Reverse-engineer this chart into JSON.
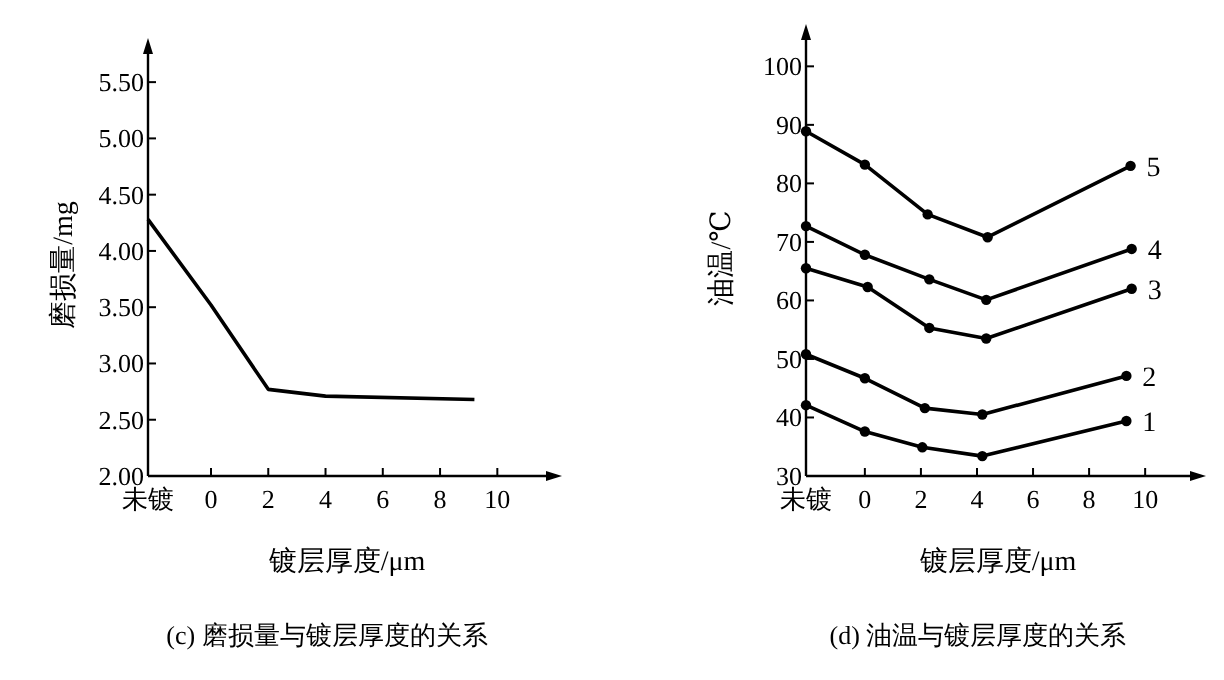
{
  "chart_data": [
    {
      "type": "line",
      "xlabel": "镀层厚度/μm",
      "ylabel": "磨损量/mg",
      "annotations": [
        "(c) 磨损量与镀层厚度的关系"
      ],
      "x": [
        -2.2,
        0,
        2,
        4,
        9.2
      ],
      "series": [
        {
          "color": "#000000",
          "values": [
            4.28,
            3.52,
            2.77,
            2.71,
            2.68
          ]
        }
      ],
      "xlim": [
        -2.2,
        11.7
      ],
      "ylim": [
        2,
        5.75
      ],
      "xticks": [
        {
          "value": -2.2,
          "label": "未镀"
        },
        0,
        2,
        4,
        6,
        8,
        10
      ],
      "yticks": [
        {
          "value": 2,
          "label": "2.00"
        },
        {
          "value": 2.5,
          "label": "2.50"
        },
        {
          "value": 3,
          "label": "3.00"
        },
        {
          "value": 3.5,
          "label": "3.50"
        },
        {
          "value": 4,
          "label": "4.00"
        },
        {
          "value": 4.5,
          "label": "4.50"
        },
        {
          "value": 5,
          "label": "5.00"
        },
        {
          "value": 5.5,
          "label": "5.50"
        }
      ],
      "grid": false,
      "marker": "none",
      "line_style": "solid"
    },
    {
      "type": "line",
      "xlabel": "镀层厚度/μm",
      "ylabel": "油温/℃",
      "annotations": [
        "(d) 油温与镀层厚度的关系"
      ],
      "series": [
        {
          "name": "1",
          "color": "#000000",
          "x": [
            -2.1,
            0,
            2.05,
            4.19,
            9.33
          ],
          "values": [
            42.1,
            37.6,
            34.9,
            33.4,
            39.4
          ]
        },
        {
          "name": "2",
          "color": "#000000",
          "x": [
            -2.1,
            0,
            2.14,
            4.19,
            9.33
          ],
          "values": [
            50.8,
            46.7,
            41.6,
            40.5,
            47.1
          ]
        },
        {
          "name": "3",
          "color": "#000000",
          "x": [
            -2.1,
            0.1,
            2.3,
            4.33,
            9.52
          ],
          "values": [
            65.5,
            62.3,
            55.3,
            53.5,
            62.0
          ]
        },
        {
          "name": "4",
          "color": "#000000",
          "x": [
            -2.1,
            0,
            2.3,
            4.33,
            9.52
          ],
          "values": [
            72.7,
            67.8,
            63.6,
            60.1,
            68.8
          ]
        },
        {
          "name": "5",
          "color": "#000000",
          "x": [
            -2.1,
            0,
            2.24,
            4.38,
            9.48
          ],
          "values": [
            88.9,
            83.2,
            74.7,
            70.8,
            83.0
          ]
        }
      ],
      "xlim": [
        -2.1,
        11.6
      ],
      "ylim": [
        30,
        104.5
      ],
      "xticks": [
        {
          "value": -2.1,
          "label": "未镀"
        },
        0,
        2,
        4,
        6,
        8,
        10
      ],
      "yticks": [
        30,
        40,
        50,
        60,
        70,
        80,
        90,
        100
      ],
      "grid": false,
      "marker": "circle",
      "line_style": "solid"
    }
  ]
}
